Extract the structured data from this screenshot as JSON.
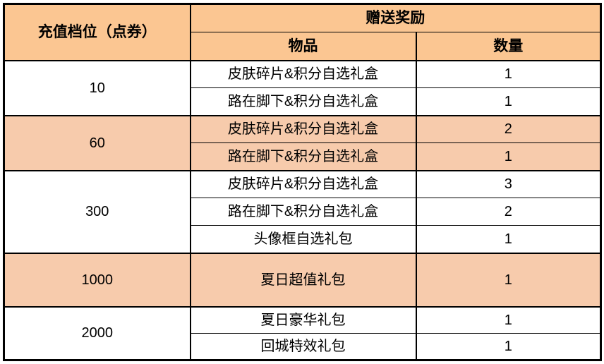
{
  "colors": {
    "header_bg": "#FBC692",
    "highlight_row_bg": "#F7CBAC",
    "row_bg": "#FFFFFF",
    "border": "#000000",
    "text": "#000000",
    "page_bg": "#FFFFFF"
  },
  "table": {
    "header": {
      "tier_label": "充值档位（点券）",
      "reward_label": "赠送奖励",
      "item_label": "物品",
      "qty_label": "数量"
    },
    "groups": [
      {
        "tier": "10",
        "highlight": false,
        "items": [
          {
            "name": "皮肤碎片&积分自选礼盒",
            "qty": "1"
          },
          {
            "name": "路在脚下&积分自选礼盒",
            "qty": "1"
          }
        ]
      },
      {
        "tier": "60",
        "highlight": true,
        "items": [
          {
            "name": "皮肤碎片&积分自选礼盒",
            "qty": "2"
          },
          {
            "name": "路在脚下&积分自选礼盒",
            "qty": "1"
          }
        ]
      },
      {
        "tier": "300",
        "highlight": false,
        "items": [
          {
            "name": "皮肤碎片&积分自选礼盒",
            "qty": "3"
          },
          {
            "name": "路在脚下&积分自选礼盒",
            "qty": "2"
          },
          {
            "name": "头像框自选礼包",
            "qty": "1"
          }
        ]
      },
      {
        "tier": "1000",
        "highlight": true,
        "items": [
          {
            "name": "夏日超值礼包",
            "qty": "1"
          }
        ]
      },
      {
        "tier": "2000",
        "highlight": false,
        "items": [
          {
            "name": "夏日豪华礼包",
            "qty": "1"
          },
          {
            "name": "回城特效礼包",
            "qty": "1"
          }
        ]
      }
    ]
  },
  "chart_data": {
    "type": "table",
    "title": "",
    "columns": [
      "充值档位（点券）",
      "物品",
      "数量"
    ],
    "column_group_header": {
      "label": "赠送奖励",
      "spans": [
        "物品",
        "数量"
      ]
    },
    "rows": [
      [
        "10",
        "皮肤碎片&积分自选礼盒",
        1
      ],
      [
        "10",
        "路在脚下&积分自选礼盒",
        1
      ],
      [
        "60",
        "皮肤碎片&积分自选礼盒",
        2
      ],
      [
        "60",
        "路在脚下&积分自选礼盒",
        1
      ],
      [
        "300",
        "皮肤碎片&积分自选礼盒",
        3
      ],
      [
        "300",
        "路在脚下&积分自选礼盒",
        2
      ],
      [
        "300",
        "头像框自选礼包",
        1
      ],
      [
        "1000",
        "夏日超值礼包",
        1
      ],
      [
        "2000",
        "夏日豪华礼包",
        1
      ],
      [
        "2000",
        "回城特效礼包",
        1
      ]
    ],
    "highlighted_tiers": [
      "60",
      "1000"
    ],
    "layout": {
      "grid": true,
      "merged_tier_cells": true
    }
  }
}
